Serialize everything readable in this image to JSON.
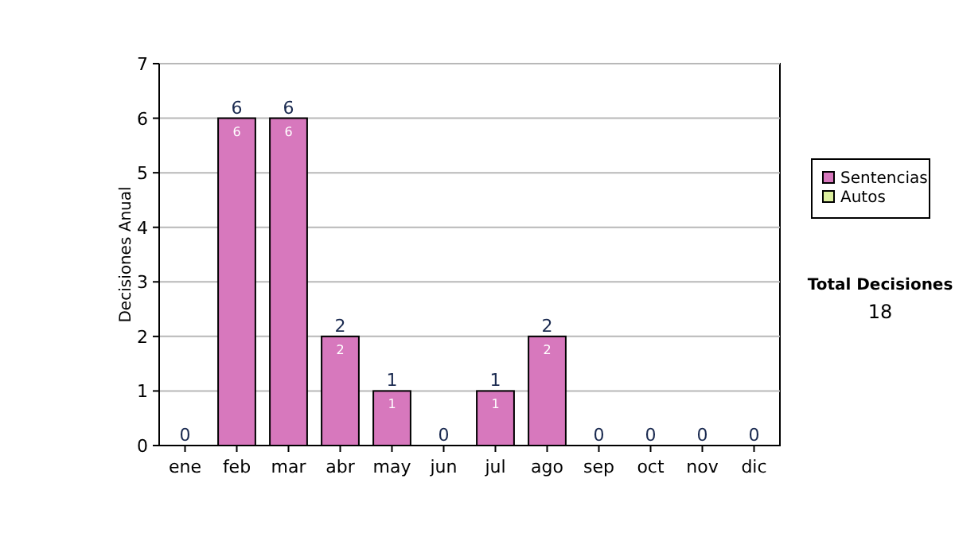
{
  "chart_data": {
    "type": "bar",
    "stacked": true,
    "ylabel": "Decisiones Anual",
    "categories": [
      "ene",
      "feb",
      "mar",
      "abr",
      "may",
      "jun",
      "jul",
      "ago",
      "sep",
      "oct",
      "nov",
      "dic"
    ],
    "series": [
      {
        "name": "Sentencias",
        "color": "#d778bd",
        "values": [
          0,
          6,
          6,
          2,
          1,
          0,
          1,
          2,
          0,
          0,
          0,
          0
        ],
        "value_labels": [
          null,
          "6",
          "6",
          "2",
          "1",
          null,
          "1",
          "2",
          null,
          null,
          null,
          null
        ]
      },
      {
        "name": "Autos",
        "color": "#dcef9e",
        "values": [
          0,
          0,
          0,
          0,
          0,
          0,
          0,
          0,
          0,
          0,
          0,
          0
        ]
      }
    ],
    "totals": [
      "0",
      "6",
      "6",
      "2",
      "1",
      "0",
      "1",
      "2",
      "0",
      "0",
      "0",
      "0"
    ],
    "ylim": [
      0,
      7
    ],
    "yticks": [
      0,
      1,
      2,
      3,
      4,
      5,
      6,
      7
    ],
    "grid": "y",
    "legend": "right",
    "annotations": [
      "Total Decisiones",
      "18"
    ]
  }
}
